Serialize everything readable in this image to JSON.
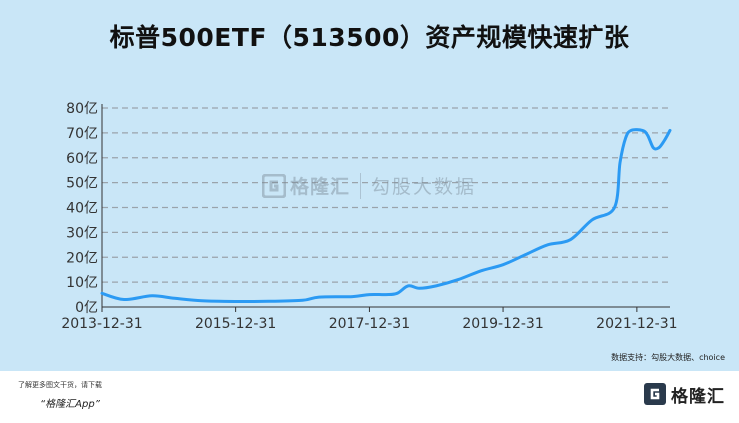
{
  "title": "标普500ETF（513500）资产规模快速扩张",
  "source": "数据支持：勾股大数据、choice",
  "watermark": {
    "brand": "格隆汇",
    "brand2": "勾股大数据"
  },
  "footer": {
    "line1": "了解更多图文干货，请下载",
    "line2": "“格隆汇App”",
    "logo_text": "格隆汇"
  },
  "colors": {
    "background": "#c9e6f7",
    "line": "#2b9af3",
    "grid": "#9aa3ab"
  },
  "chart_data": {
    "type": "line",
    "title": "标普500ETF（513500）资产规模快速扩张",
    "xlabel": "",
    "ylabel": "",
    "ylim": [
      0,
      80
    ],
    "y_ticks": [
      "0亿",
      "10亿",
      "20亿",
      "30亿",
      "40亿",
      "50亿",
      "60亿",
      "70亿",
      "80亿"
    ],
    "x_ticks": [
      "2013-12-31",
      "2015-12-31",
      "2017-12-31",
      "2019-12-31",
      "2021-12-31"
    ],
    "x_range": [
      "2013-12-31",
      "2022-06-30"
    ],
    "grid": true,
    "series": [
      {
        "x": [
          "2013-12-31",
          "2014-04-30",
          "2014-09-30",
          "2015-01-31",
          "2015-06-30",
          "2015-12-31",
          "2016-06-30",
          "2016-12-31",
          "2017-03-31",
          "2017-09-30",
          "2017-12-31",
          "2018-03-31",
          "2018-05-31",
          "2018-07-31",
          "2018-09-30",
          "2018-12-31",
          "2019-04-30",
          "2019-08-31",
          "2019-12-31",
          "2020-04-30",
          "2020-08-31",
          "2020-12-31",
          "2021-04-30",
          "2021-08-31",
          "2021-09-30",
          "2021-10-31",
          "2021-11-30",
          "2022-01-31",
          "2022-02-28",
          "2022-03-31",
          "2022-04-30",
          "2022-05-31",
          "2022-06-30"
        ],
        "values": [
          5.5,
          3,
          4.5,
          3.5,
          2.5,
          2.2,
          2.3,
          2.7,
          4.0,
          4.2,
          5.0,
          5.0,
          5.5,
          8.5,
          7.5,
          8.5,
          11,
          14.5,
          17,
          21,
          25,
          27,
          35,
          40,
          58,
          68,
          71,
          71,
          69,
          64,
          64,
          67,
          71
        ]
      }
    ]
  }
}
